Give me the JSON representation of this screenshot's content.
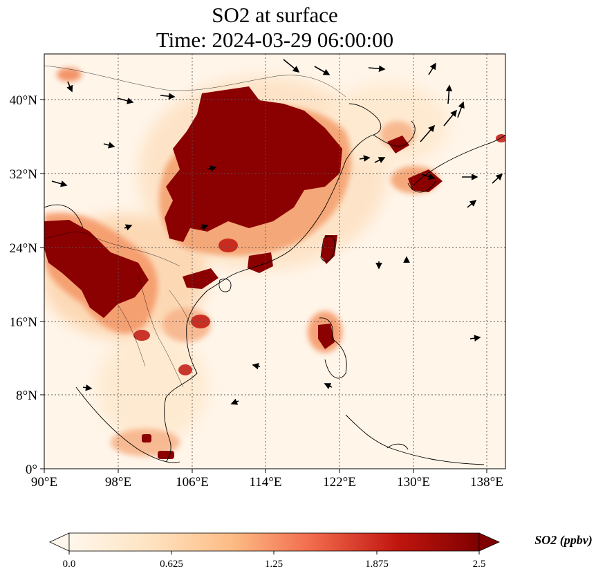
{
  "title": {
    "line1": "SO2 at surface",
    "line2": "Time: 2024-03-29 06:00:00"
  },
  "map": {
    "variable": "SO2",
    "units": "ppbv",
    "longitude_ticks": [
      "90°E",
      "98°E",
      "106°E",
      "114°E",
      "122°E",
      "130°E",
      "138°E"
    ],
    "latitude_ticks": [
      "0°",
      "8°N",
      "16°N",
      "24°N",
      "32°N",
      "40°N"
    ],
    "lon_range": [
      90,
      140
    ],
    "lat_range": [
      0,
      45
    ],
    "gridlines": "dotted",
    "colormap": "OrRd",
    "colors": {
      "low": "#fff7ec",
      "mid": "#fc8d59",
      "high": "#7f0000"
    },
    "overlays": [
      "coastlines",
      "country-borders",
      "wind-vectors"
    ]
  },
  "colorbar": {
    "label": "SO2 (ppbv)",
    "ticks": [
      "0.0",
      "0.625",
      "1.25",
      "1.875",
      "2.5"
    ],
    "range": [
      0.0,
      2.5
    ],
    "extend": "both"
  }
}
